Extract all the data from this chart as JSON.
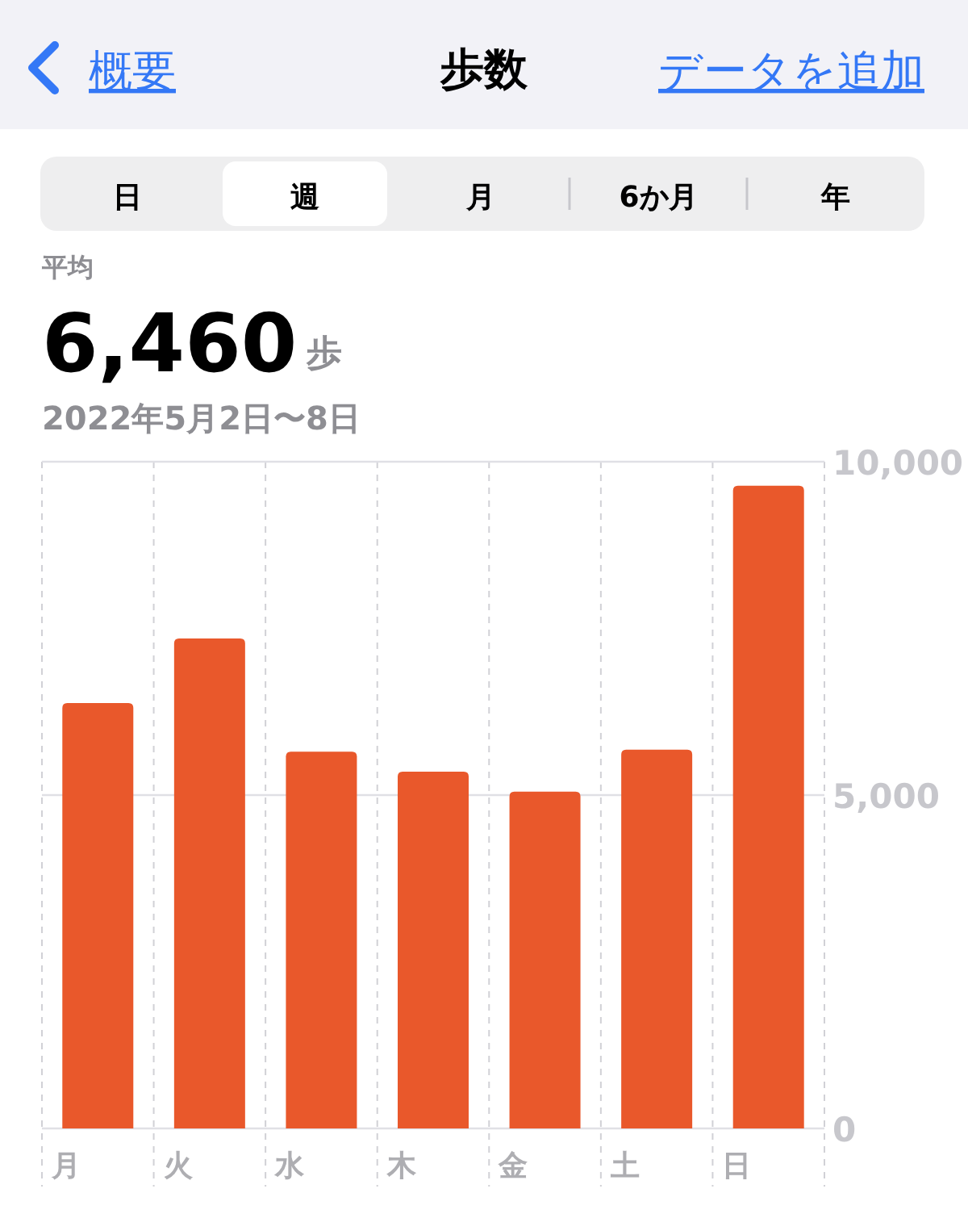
{
  "chart_data": {
    "type": "bar",
    "title": "歩数",
    "annotations": [
      "概要",
      "データを追加",
      "日",
      "週",
      "月",
      "6か月",
      "年",
      "平均",
      "6,460",
      "歩",
      "2022年5月2日〜8日"
    ],
    "categories": [
      "月",
      "火",
      "水",
      "木",
      "金",
      "土",
      "日"
    ],
    "values": [
      6380,
      7350,
      5650,
      5350,
      5050,
      5680,
      9640
    ],
    "color": "#e9582b",
    "ylim": [
      0,
      10000
    ],
    "yticks": [
      0,
      {
        "value": 5000,
        "label": "5,000"
      },
      {
        "value": 10000,
        "label": "10,000"
      }
    ],
    "grid": true
  }
}
